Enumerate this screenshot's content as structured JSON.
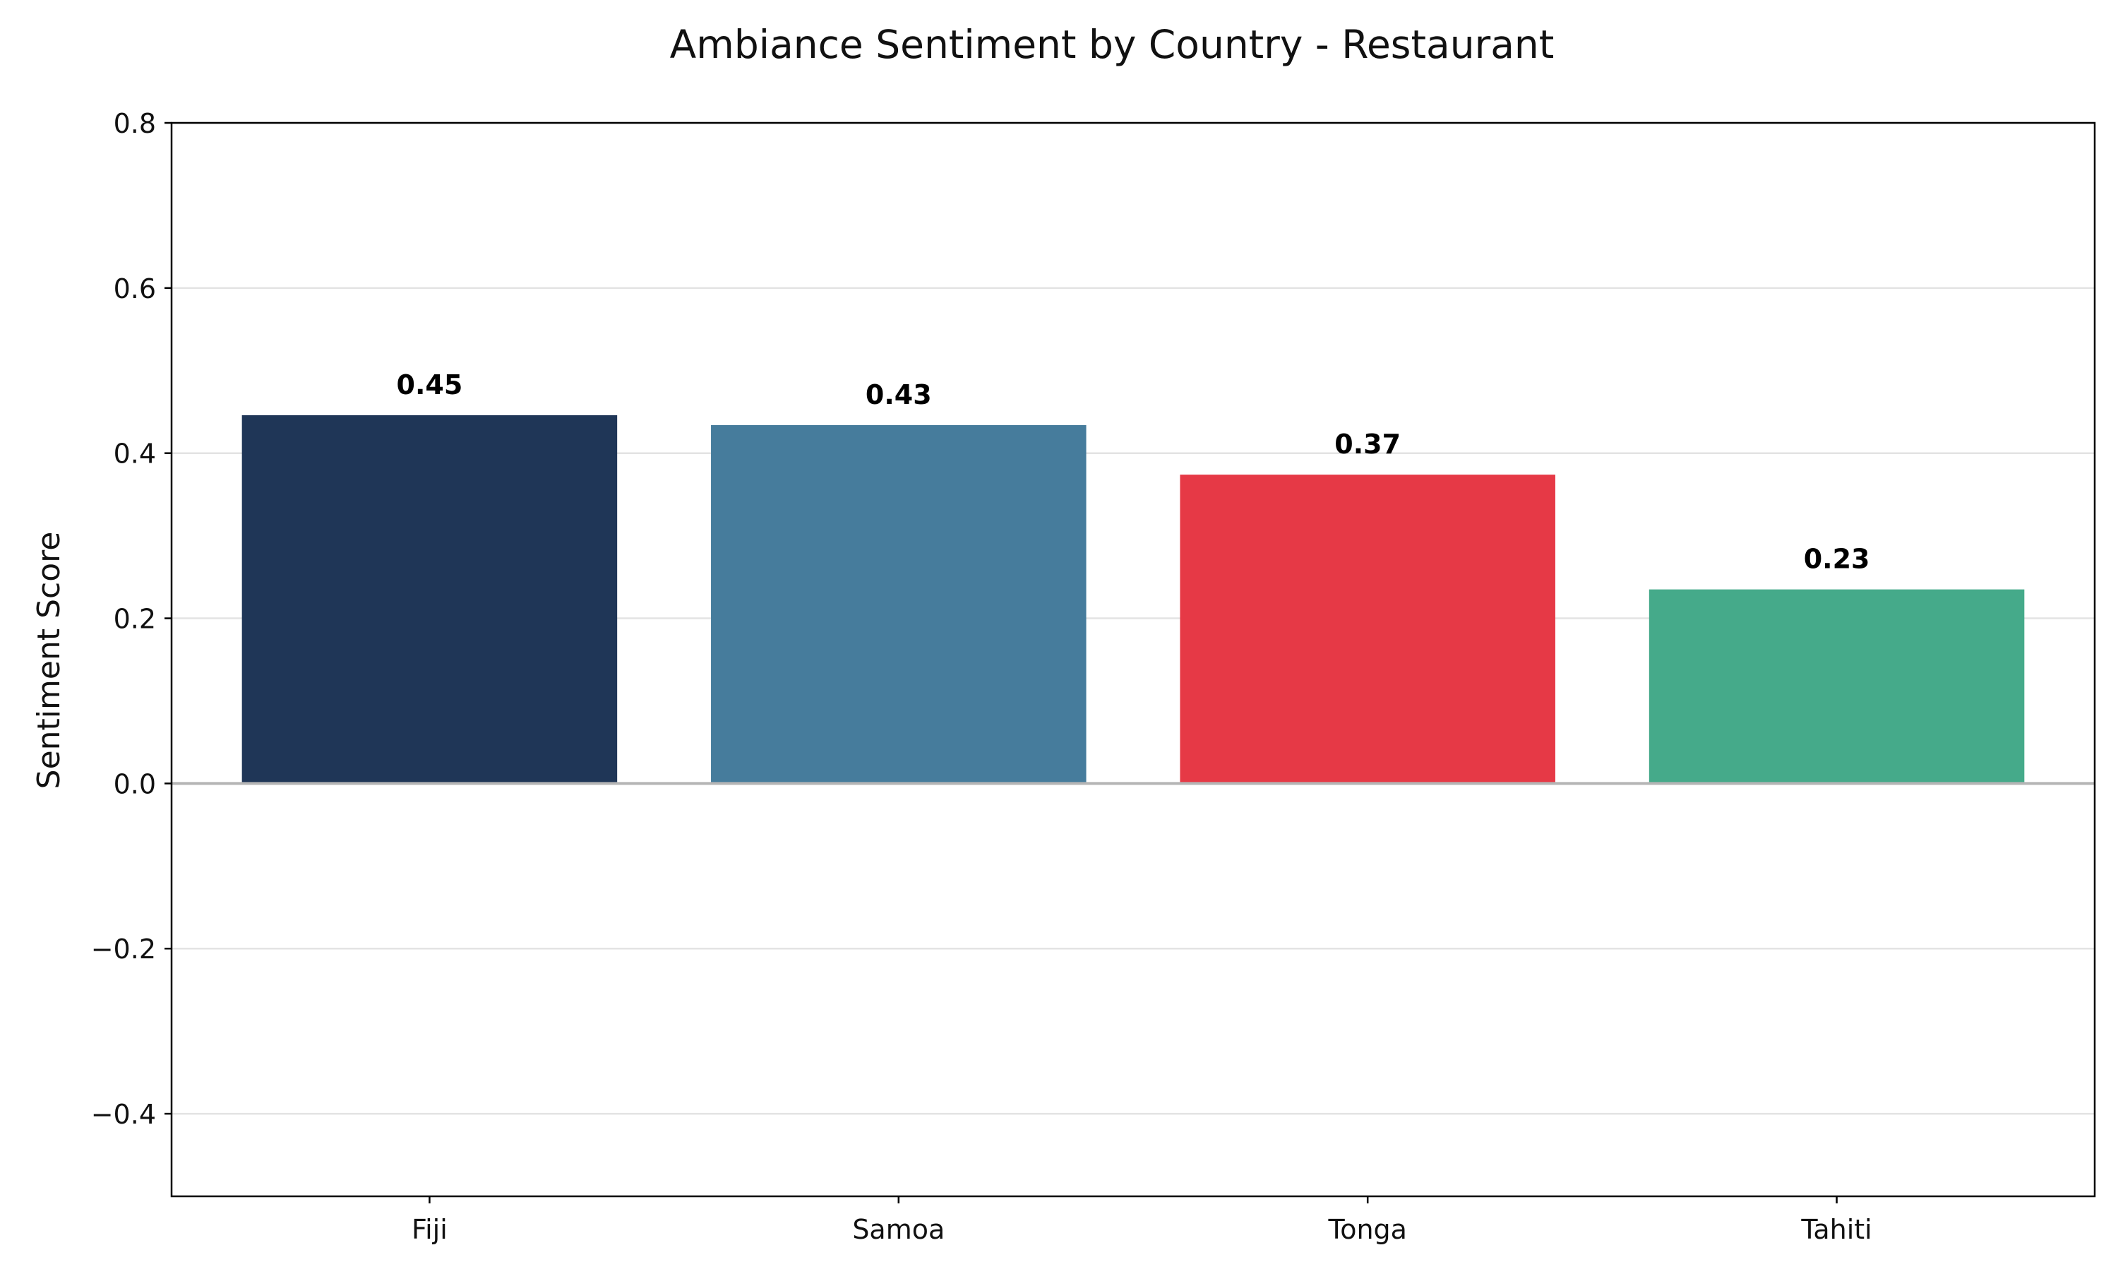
{
  "chart_data": {
    "type": "bar",
    "title": "Ambiance Sentiment by Country - Restaurant",
    "xlabel": "",
    "ylabel": "Sentiment Score",
    "categories": [
      "Fiji",
      "Samoa",
      "Tonga",
      "Tahiti"
    ],
    "values": [
      0.446,
      0.434,
      0.374,
      0.235
    ],
    "value_labels": [
      "0.45",
      "0.43",
      "0.37",
      "0.23"
    ],
    "colors": [
      "#1f3657",
      "#467c9c",
      "#e63946",
      "#45aa8a"
    ],
    "ylim": [
      -0.5,
      0.8
    ],
    "yticks": [
      -0.4,
      -0.2,
      0.0,
      0.2,
      0.4,
      0.6,
      0.8
    ],
    "ytick_labels": [
      "−0.4",
      "−0.2",
      "0.0",
      "0.2",
      "0.4",
      "0.6",
      "0.8"
    ],
    "grid": true,
    "legend": "none"
  }
}
